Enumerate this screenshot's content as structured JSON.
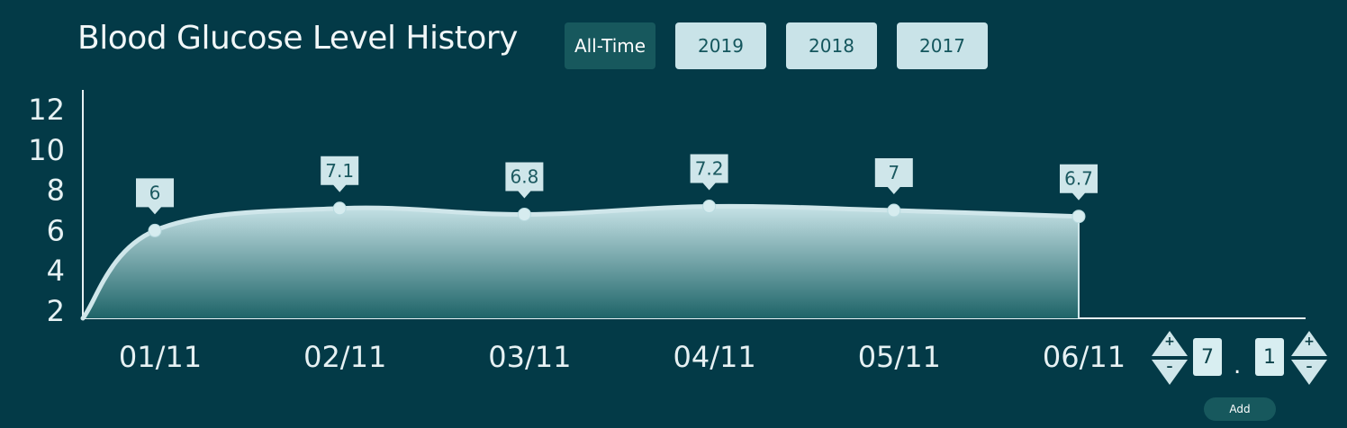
{
  "title": "Blood Glucose Level History",
  "tabs": [
    {
      "label": "All-Time",
      "active": true
    },
    {
      "label": "2019",
      "active": false
    },
    {
      "label": "2018",
      "active": false
    },
    {
      "label": "2017",
      "active": false
    }
  ],
  "colors": {
    "background": "#033a47",
    "curve": "#cfe6ea",
    "area_top": "#c6e2e6",
    "area_bottom": "#1e6468",
    "tab_active": "#17585d",
    "tab_inactive": "#c9e3e8"
  },
  "chart_data": {
    "type": "area",
    "x": [
      "01/11",
      "02/11",
      "03/11",
      "04/11",
      "05/11",
      "06/11"
    ],
    "values": [
      6,
      7.1,
      6.8,
      7.2,
      7,
      6.7
    ],
    "y_ticks": [
      "12",
      "10",
      "8",
      "6",
      "4",
      "2"
    ],
    "ylim": [
      2,
      12
    ],
    "title": "Blood Glucose Level History",
    "xlabel": "",
    "ylabel": "",
    "grid": false,
    "data_labels": true
  },
  "entry": {
    "integer_digit": "7",
    "separator": ".",
    "decimal_digit": "1",
    "plus_symbol": "+",
    "minus_symbol": "–",
    "add_label": "Add"
  }
}
